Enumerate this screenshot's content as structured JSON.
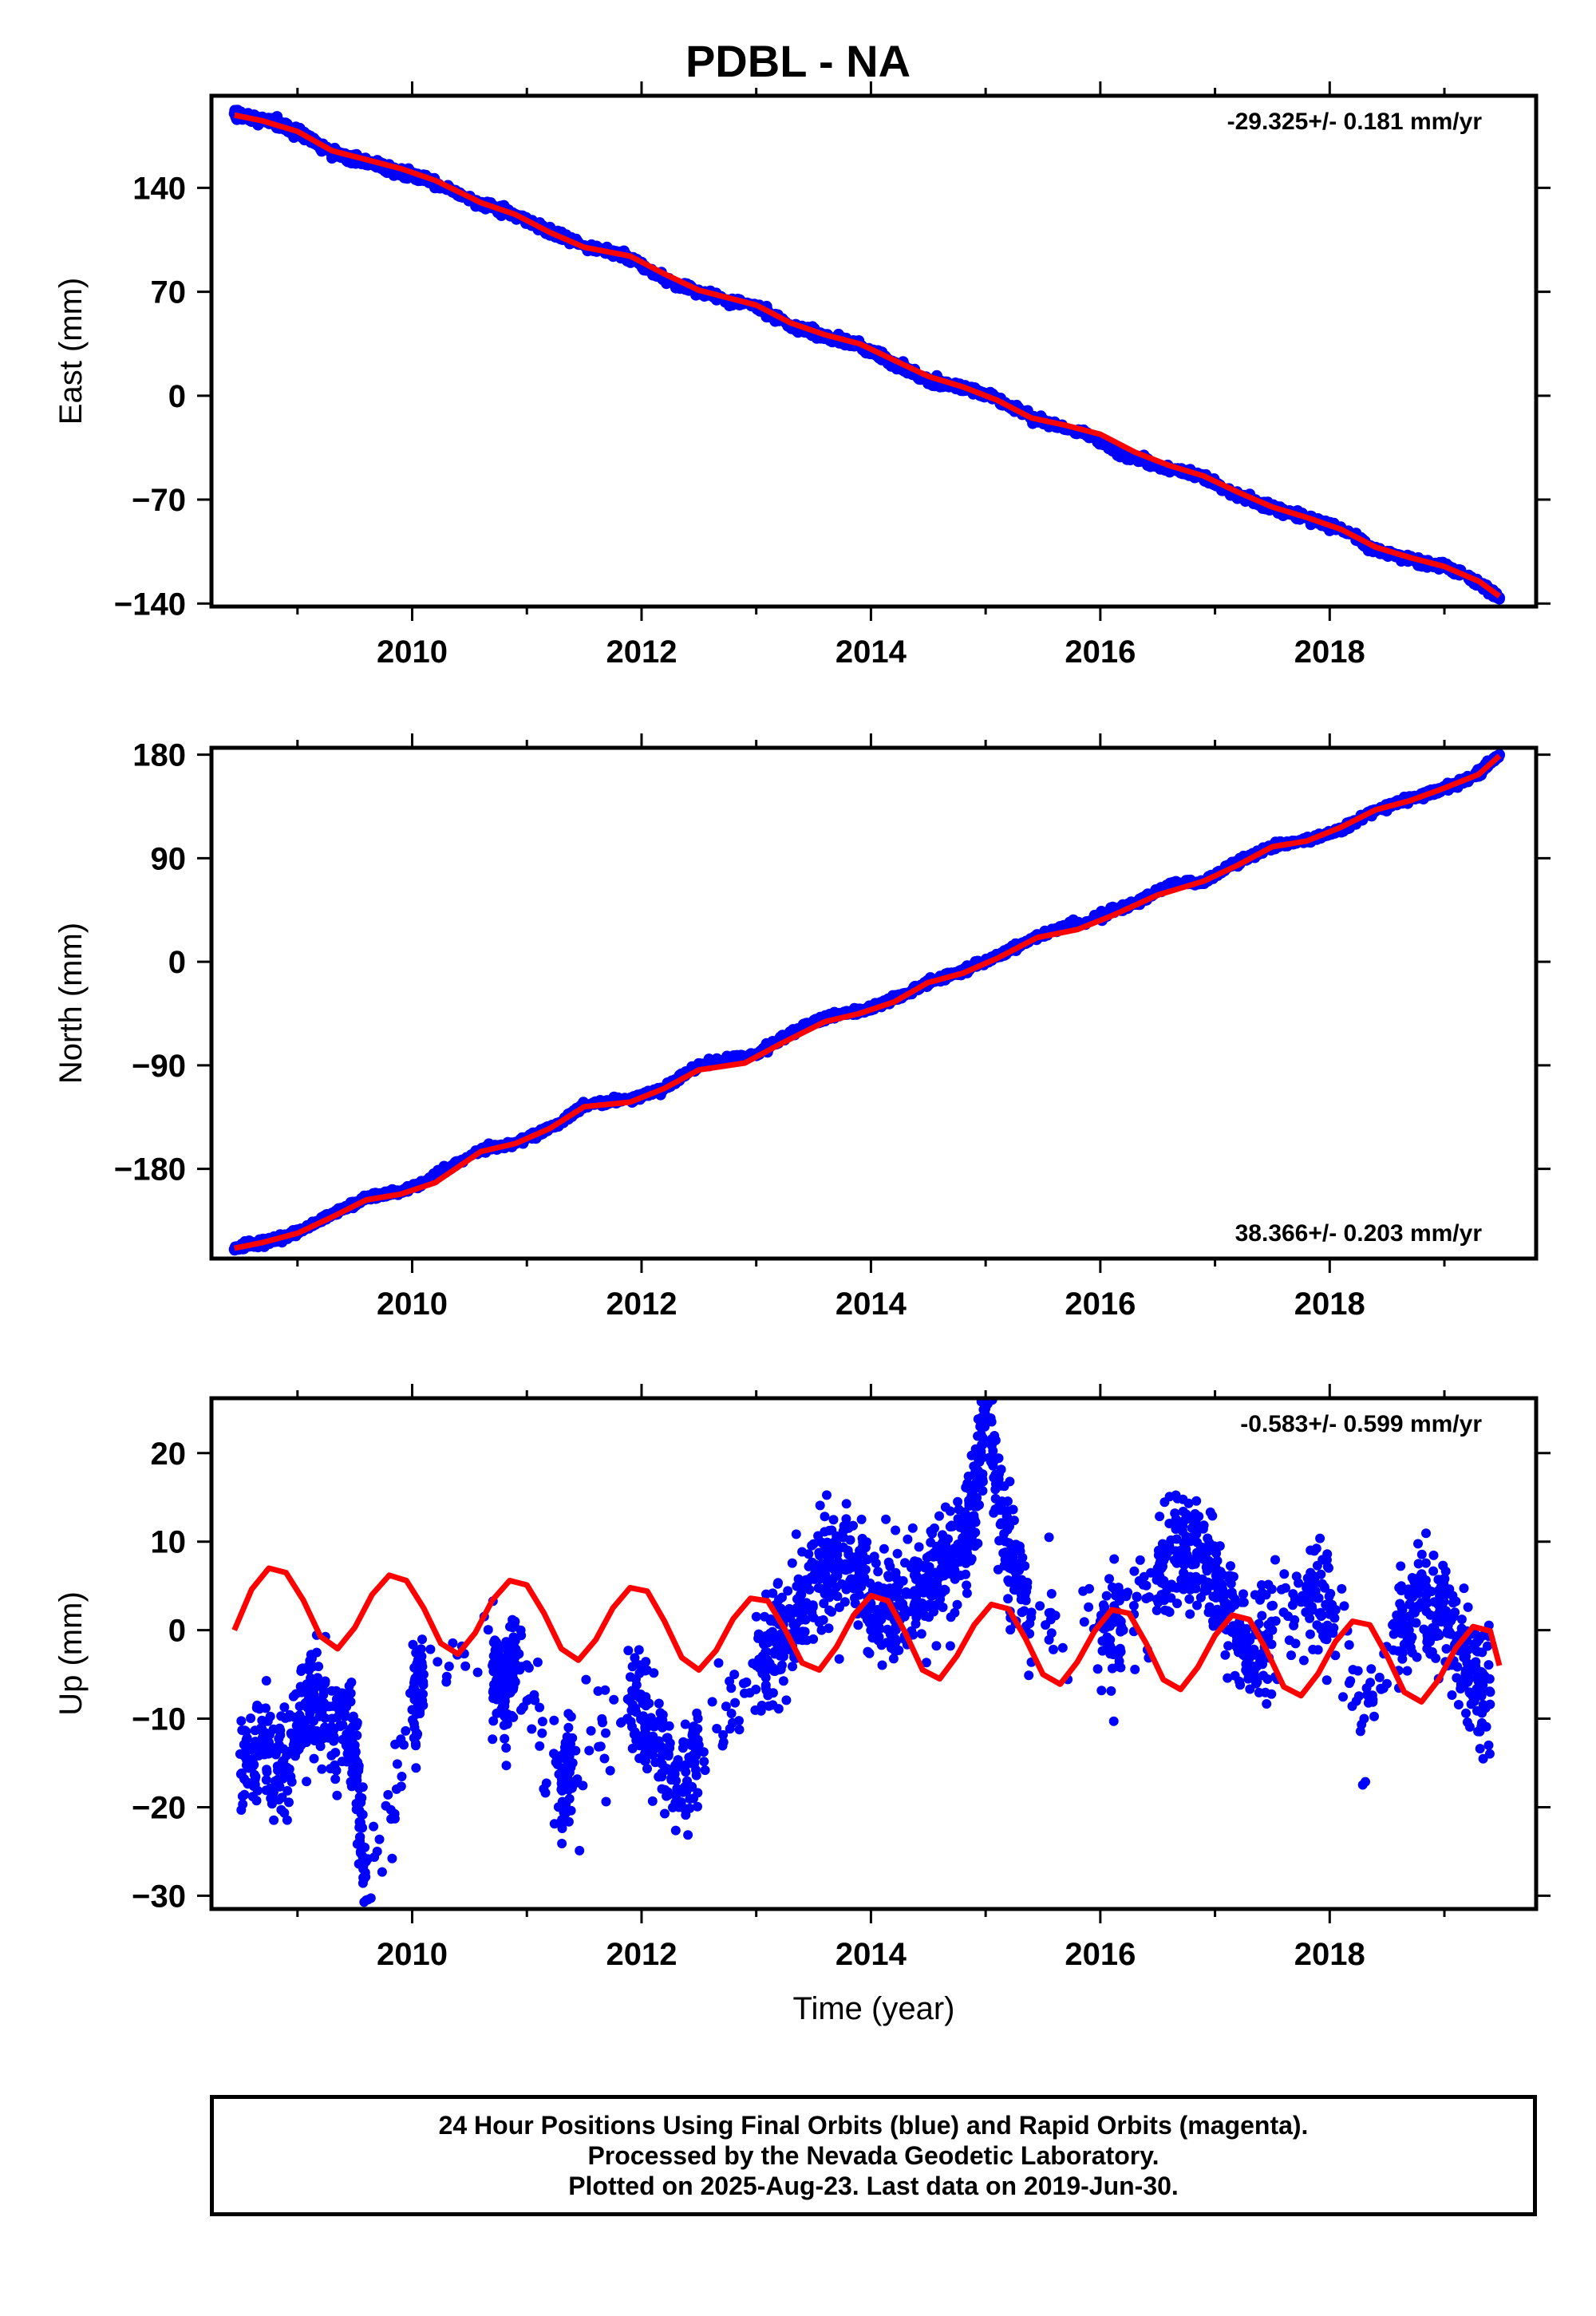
{
  "title": "PDBL - NA",
  "xlabel": "Time (year)",
  "footer": {
    "line1": "24 Hour Positions Using Final Orbits (blue) and Rapid Orbits (magenta).",
    "line2": "Processed by the Nevada Geodetic Laboratory.",
    "line3": "Plotted on 2025-Aug-23. Last data on 2019-Jun-30."
  },
  "colors": {
    "observations": "#0000ff",
    "model": "#ff0000",
    "axis": "#000000"
  },
  "chart_data": [
    {
      "type": "scatter",
      "panel": "east",
      "ylabel": "East (mm)",
      "rate_label": "-29.325+/- 0.181 mm/yr",
      "rate_position": "top-right",
      "xlim": [
        2008.25,
        2019.8
      ],
      "ylim": [
        -142,
        202
      ],
      "xticks": [
        2010,
        2012,
        2014,
        2016,
        2018
      ],
      "yticks": [
        -140,
        -70,
        0,
        70,
        140
      ],
      "ytick_labels": [
        "−140",
        "−70",
        "0",
        "70",
        "140"
      ],
      "series": [
        {
          "kind": "points",
          "x": [
            2008.45,
            2008.6,
            2008.8,
            2009.0,
            2009.2,
            2009.45,
            2009.6,
            2009.9,
            2010.1,
            2010.6,
            2010.9,
            2011.25,
            2011.5,
            2011.9,
            2012.2,
            2012.5,
            2013.0,
            2013.3,
            2013.6,
            2013.9,
            2014.2,
            2014.5,
            2014.8,
            2015.1,
            2015.45,
            2016.0,
            2016.2,
            2016.5,
            2016.9,
            2017.2,
            2017.5,
            2017.8,
            2018.1,
            2018.4,
            2018.7,
            2019.0,
            2019.3,
            2019.48
          ],
          "y": [
            190,
            187,
            184,
            178,
            168,
            160,
            158,
            150,
            146,
            130,
            122,
            108,
            101,
            93,
            78,
            70,
            60,
            47,
            40,
            34,
            22,
            10,
            6,
            -2,
            -16,
            -30,
            -40,
            -47,
            -55,
            -67,
            -76,
            -82,
            -90,
            -104,
            -110,
            -115,
            -126,
            -136
          ]
        },
        {
          "kind": "line",
          "x": [
            2008.45,
            2008.7,
            2009.0,
            2009.3,
            2009.6,
            2009.9,
            2010.2,
            2010.6,
            2010.9,
            2011.2,
            2011.5,
            2011.9,
            2012.2,
            2012.5,
            2013.0,
            2013.3,
            2013.6,
            2013.9,
            2014.2,
            2014.5,
            2014.8,
            2015.1,
            2015.4,
            2015.7,
            2016.0,
            2016.3,
            2016.6,
            2016.9,
            2017.2,
            2017.5,
            2017.8,
            2018.1,
            2018.4,
            2018.7,
            2019.0,
            2019.3,
            2019.48
          ],
          "y": [
            189,
            185,
            178,
            165,
            159,
            153,
            145,
            130,
            122,
            110,
            100,
            94,
            82,
            71,
            61,
            49,
            41,
            35,
            24,
            13,
            6,
            -3,
            -15,
            -20,
            -26,
            -38,
            -47,
            -54,
            -65,
            -75,
            -82,
            -90,
            -102,
            -109,
            -115,
            -125,
            -135
          ]
        }
      ]
    },
    {
      "type": "scatter",
      "panel": "north",
      "ylabel": "North (mm)",
      "rate_label": "38.366+/- 0.203 mm/yr",
      "rate_position": "bottom-right",
      "xlim": [
        2008.25,
        2019.8
      ],
      "ylim": [
        -258,
        186
      ],
      "xticks": [
        2010,
        2012,
        2014,
        2016,
        2018
      ],
      "yticks": [
        -180,
        -90,
        0,
        90,
        180
      ],
      "ytick_labels": [
        "−180",
        "−90",
        "0",
        "90",
        "180"
      ],
      "series": [
        {
          "kind": "points",
          "x": [
            2008.45,
            2008.6,
            2008.8,
            2009.0,
            2009.3,
            2009.6,
            2009.9,
            2010.1,
            2010.6,
            2010.9,
            2011.3,
            2011.5,
            2011.9,
            2012.2,
            2012.5,
            2013.0,
            2013.3,
            2013.6,
            2013.9,
            2014.2,
            2014.5,
            2014.8,
            2015.1,
            2015.45,
            2016.0,
            2016.3,
            2016.6,
            2016.9,
            2017.2,
            2017.5,
            2017.8,
            2018.1,
            2018.4,
            2018.7,
            2019.0,
            2019.3,
            2019.48
          ],
          "y": [
            -250,
            -245,
            -242,
            -235,
            -220,
            -205,
            -200,
            -192,
            -163,
            -158,
            -140,
            -124,
            -120,
            -110,
            -90,
            -80,
            -62,
            -48,
            -43,
            -33,
            -18,
            -8,
            5,
            22,
            40,
            50,
            67,
            70,
            87,
            100,
            106,
            115,
            132,
            142,
            150,
            164,
            180
          ]
        },
        {
          "kind": "line",
          "x": [
            2008.45,
            2008.7,
            2009.0,
            2009.3,
            2009.6,
            2009.9,
            2010.2,
            2010.6,
            2010.9,
            2011.2,
            2011.5,
            2011.9,
            2012.2,
            2012.5,
            2012.9,
            2013.2,
            2013.6,
            2013.9,
            2014.2,
            2014.5,
            2014.8,
            2015.1,
            2015.45,
            2015.8,
            2016.1,
            2016.5,
            2016.9,
            2017.2,
            2017.5,
            2017.8,
            2018.1,
            2018.4,
            2018.7,
            2019.0,
            2019.3,
            2019.48
          ],
          "y": [
            -249,
            -244,
            -236,
            -222,
            -207,
            -202,
            -192,
            -165,
            -158,
            -145,
            -126,
            -122,
            -110,
            -94,
            -88,
            -72,
            -52,
            -45,
            -35,
            -18,
            -10,
            3,
            21,
            28,
            40,
            58,
            70,
            84,
            100,
            105,
            117,
            132,
            140,
            151,
            163,
            179
          ]
        }
      ]
    },
    {
      "type": "scatter",
      "panel": "up",
      "ylabel": "Up (mm)",
      "rate_label": "-0.583+/- 0.599 mm/yr",
      "rate_position": "top-right",
      "xlabel": "Time (year)",
      "xlim": [
        2008.25,
        2019.8
      ],
      "ylim": [
        -31.5,
        26.2
      ],
      "xticks": [
        2010,
        2012,
        2014,
        2016,
        2018
      ],
      "yticks": [
        -30,
        -20,
        -10,
        0,
        10,
        20
      ],
      "ytick_labels": [
        "−30",
        "−20",
        "−10",
        "0",
        "10",
        "20"
      ],
      "series": [
        {
          "kind": "points",
          "x": [
            2008.5,
            2008.7,
            2008.9,
            2009.1,
            2009.3,
            2009.5,
            2009.6,
            2010.0,
            2010.1,
            2010.7,
            2010.8,
            2010.9,
            2011.3,
            2011.4,
            2011.9,
            2012.1,
            2012.3,
            2012.5,
            2013.0,
            2013.2,
            2013.4,
            2013.6,
            2013.8,
            2014.0,
            2014.2,
            2014.4,
            2014.6,
            2014.8,
            2014.9,
            2015.0,
            2015.2,
            2015.4,
            2016.0,
            2016.2,
            2016.5,
            2016.7,
            2016.9,
            2017.1,
            2017.3,
            2017.5,
            2017.8,
            2018.0,
            2018.3,
            2018.6,
            2018.8,
            2019.0,
            2019.2,
            2019.4
          ],
          "y": [
            -14,
            -13,
            -16,
            -7,
            -10,
            -13,
            -30.5,
            -9,
            -5,
            -4,
            -7,
            -3,
            -18,
            -15,
            -8,
            -12,
            -17,
            -13,
            -4,
            -1,
            3,
            7,
            9,
            3,
            2,
            4,
            6,
            10,
            14,
            25,
            8,
            2,
            1,
            0,
            7,
            9,
            8,
            3,
            -4,
            0,
            5,
            3,
            -10,
            0,
            3,
            2,
            -5,
            -7
          ]
        },
        {
          "kind": "line",
          "x": [
            2008.45,
            2008.6,
            2008.75,
            2008.9,
            2009.05,
            2009.2,
            2009.35,
            2009.5,
            2009.65,
            2009.8,
            2009.95,
            2010.1,
            2010.25,
            2010.4,
            2010.55,
            2010.7,
            2010.85,
            2011.0,
            2011.15,
            2011.3,
            2011.45,
            2011.6,
            2011.75,
            2011.9,
            2012.05,
            2012.2,
            2012.35,
            2012.5,
            2012.65,
            2012.8,
            2012.95,
            2013.1,
            2013.25,
            2013.4,
            2013.55,
            2013.7,
            2013.85,
            2014.0,
            2014.15,
            2014.3,
            2014.45,
            2014.6,
            2014.75,
            2014.9,
            2015.05,
            2015.2,
            2015.35,
            2015.5,
            2015.65,
            2015.8,
            2015.95,
            2016.1,
            2016.25,
            2016.4,
            2016.55,
            2016.7,
            2016.85,
            2017.0,
            2017.15,
            2017.3,
            2017.45,
            2017.6,
            2017.75,
            2017.9,
            2018.05,
            2018.2,
            2018.35,
            2018.5,
            2018.65,
            2018.8,
            2018.95,
            2019.1,
            2019.25,
            2019.4,
            2019.48
          ],
          "y": [
            0.0,
            4.6,
            7.0,
            6.5,
            3.4,
            -0.7,
            -2.1,
            0.3,
            4.0,
            6.2,
            5.6,
            2.5,
            -1.5,
            -2.7,
            -0.3,
            3.4,
            5.6,
            5.1,
            1.9,
            -2.1,
            -3.4,
            -1.1,
            2.5,
            4.8,
            4.4,
            1.0,
            -3.1,
            -4.5,
            -2.3,
            1.3,
            3.6,
            3.3,
            0.1,
            -3.7,
            -4.5,
            -1.9,
            1.7,
            3.9,
            3.3,
            -0.3,
            -4.5,
            -5.5,
            -2.9,
            0.6,
            2.9,
            2.4,
            -1.0,
            -5.0,
            -6.1,
            -3.6,
            -0.1,
            2.3,
            1.9,
            -1.5,
            -5.6,
            -6.7,
            -4.2,
            -0.6,
            1.7,
            1.2,
            -2.3,
            -6.4,
            -7.4,
            -4.9,
            -1.3,
            1.0,
            0.6,
            -2.9,
            -7.0,
            -8.1,
            -5.6,
            -2.0,
            0.4,
            -0.1,
            -4.0
          ]
        }
      ]
    }
  ]
}
